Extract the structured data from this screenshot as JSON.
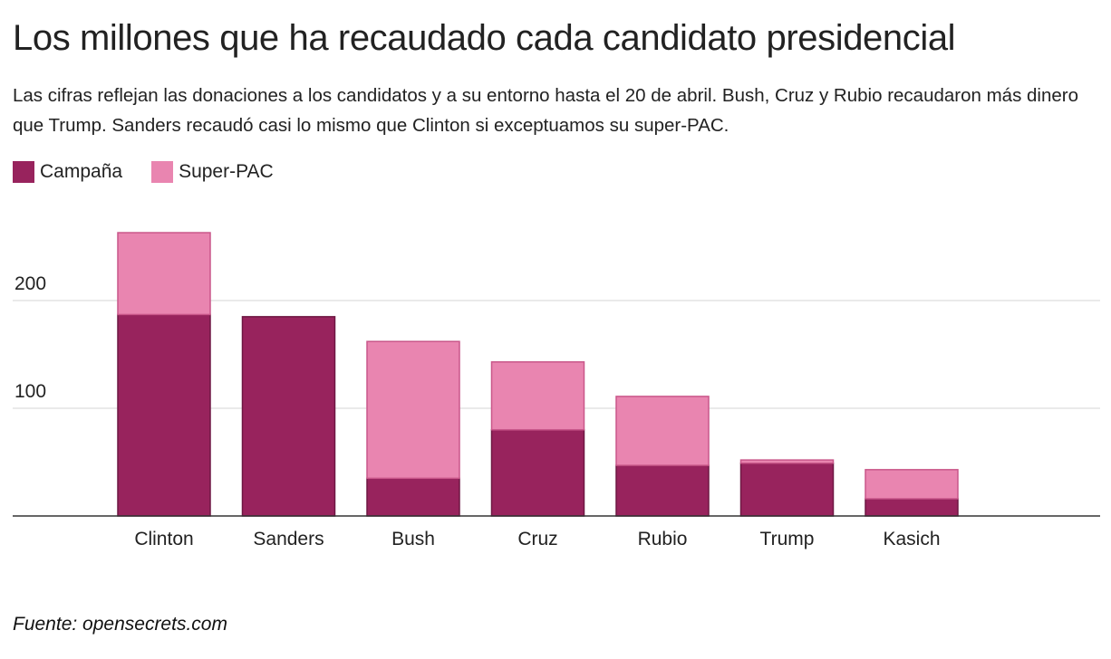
{
  "title": "Los millones que ha recaudado cada candidato presidencial",
  "subtitle": "Las cifras reflejan las donaciones a los candidatos y a su entorno hasta el 20 de abril. Bush, Cruz y Rubio recaudaron más dinero que Trump. Sanders recaudó casi lo mismo que Clinton si exceptuamos su super-PAC.",
  "source": "Fuente: opensecrets.com",
  "colors": {
    "campaign": "#98235d",
    "campaign_border": "#6e1743",
    "superpac": "#e985b0",
    "superpac_border": "#c9578a",
    "grid": "#d6d6d6",
    "axis": "#333333",
    "text": "#222222"
  },
  "chart_data": {
    "type": "bar",
    "stacked": true,
    "categories": [
      "Clinton",
      "Sanders",
      "Bush",
      "Cruz",
      "Rubio",
      "Trump",
      "Kasich"
    ],
    "series": [
      {
        "name": "Campaña",
        "values": [
          187,
          185,
          35,
          80,
          47,
          49,
          16
        ]
      },
      {
        "name": "Super-PAC",
        "values": [
          76,
          0,
          127,
          63,
          64,
          3,
          27
        ]
      }
    ],
    "yticks": [
      100,
      200
    ],
    "ylim": [
      0,
      290
    ],
    "grid": true,
    "legend_position": "top-left",
    "xlabel": "",
    "ylabel": ""
  }
}
